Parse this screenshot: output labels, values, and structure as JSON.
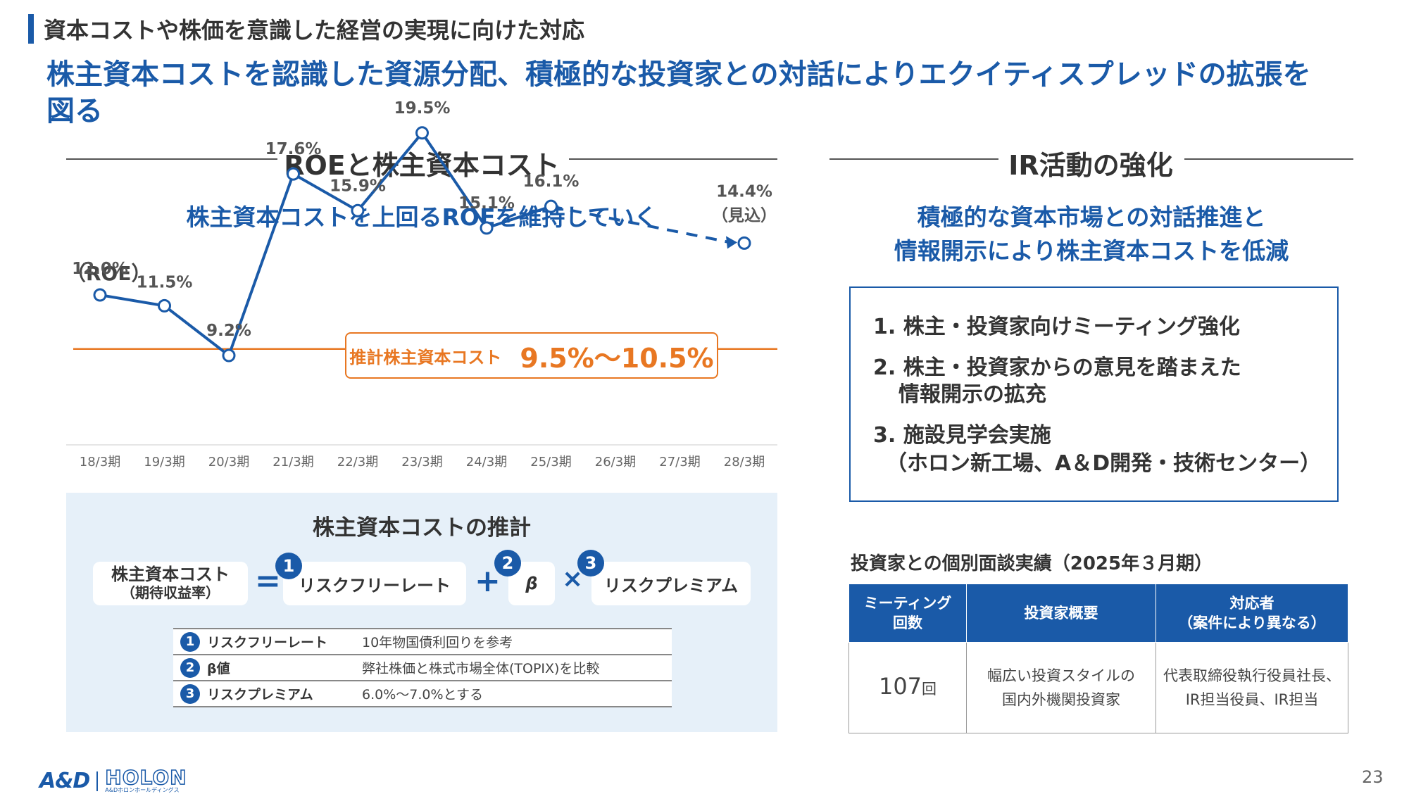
{
  "header": "資本コストや株価を意識した経営の実現に向けた対応",
  "headline": "株主資本コストを認識した資源分配、積極的な投資家との対話によりエクイティスプレッドの拡張を図る",
  "left_section": {
    "title": "ROEと株主資本コスト",
    "subtitle": "株主資本コストを上回るROEを維持していく",
    "cost_label": "推計株主資本コスト",
    "cost_range": "9.5%〜10.5%"
  },
  "chart_data": {
    "type": "line",
    "ylabel": "（ROE）",
    "categories": [
      "18/3期",
      "19/3期",
      "20/3期",
      "21/3期",
      "22/3期",
      "23/3期",
      "24/3期",
      "25/3期",
      "26/3期",
      "27/3期",
      "28/3期"
    ],
    "series": [
      {
        "values": [
          12.0,
          11.5,
          9.2,
          17.6,
          15.9,
          19.5,
          15.1,
          16.1,
          null,
          null,
          14.4
        ]
      }
    ],
    "data_labels": [
      "12.0%",
      "11.5%",
      "9.2%",
      "17.6%",
      "15.9%",
      "19.5%",
      "15.1%",
      "16.1%",
      "",
      "",
      "14.4%"
    ],
    "forecast_note": "（見込）",
    "forecast_from_index": 7,
    "cost_line": 9.5,
    "colors": {
      "line": "#1a5aa8",
      "cost": "#e87722"
    }
  },
  "estimate": {
    "title": "株主資本コストの推計",
    "lhs_line1": "株主資本コスト",
    "lhs_line2": "（期待収益率）",
    "eq": "=",
    "plus": "+",
    "times": "×",
    "term1": "リスクフリーレート",
    "term2": "β",
    "term3": "リスクプレミアム",
    "n1": "1",
    "n2": "2",
    "n3": "3",
    "rows": [
      {
        "num": "1",
        "name": "リスクフリーレート",
        "desc": "10年物国債利回りを参考"
      },
      {
        "num": "2",
        "name": "β値",
        "desc": "弊社株価と株式市場全体(TOPIX)を比較"
      },
      {
        "num": "3",
        "name": "リスクプレミアム",
        "desc": "6.0%〜7.0%とする"
      }
    ]
  },
  "right_section": {
    "title": "IR活動の強化",
    "subtitle_line1": "積極的な資本市場との対話推進と",
    "subtitle_line2": "情報開示により株主資本コストを低減",
    "items": [
      {
        "line1": "1. 株主・投資家向けミーティング強化",
        "line2": ""
      },
      {
        "line1": "2. 株主・投資家からの意見を踏まえた",
        "line2": "情報開示の拡充"
      },
      {
        "line1": "3. 施設見学会実施",
        "line2": "（ホロン新工場、A＆D開発・技術センター）"
      }
    ]
  },
  "meetings": {
    "title": "投資家との個別面談実績（2025年３月期）",
    "headers": {
      "h1_line1": "ミーティング",
      "h1_line2": "回数",
      "h2": "投資家概要",
      "h3_line1": "対応者",
      "h3_line2": "（案件により異なる）"
    },
    "count": "107",
    "count_unit": "回",
    "overview_line1": "幅広い投資スタイルの",
    "overview_line2": "国内外機関投資家",
    "responders_line1": "代表取締役執行役員社長、",
    "responders_line2": "IR担当役員、IR担当"
  },
  "footer": {
    "logo1": "A&D",
    "logo2": "HOLON",
    "logo_sub": "A&Dホロンホールディングス",
    "page": "23"
  }
}
